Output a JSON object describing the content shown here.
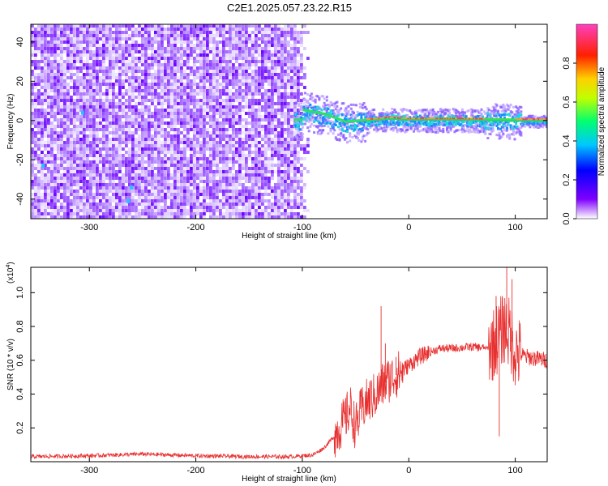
{
  "title": "C2E1.2025.057.23.22.R15",
  "chart_data": [
    {
      "type": "heatmap",
      "xlabel": "Height of straight line (km)",
      "ylabel": "Frequency (Hz)",
      "xlim": [
        -355,
        130
      ],
      "ylim": [
        -50,
        49
      ],
      "xticks": [
        -300,
        -200,
        -100,
        0,
        100
      ],
      "yticks": [
        -40,
        -20,
        0,
        20,
        40
      ],
      "colorbar": {
        "label": "Normalized spectral amplitude",
        "range": [
          0,
          1
        ],
        "ticks": [
          0.0,
          0.2,
          0.4,
          0.6,
          0.8
        ]
      },
      "features": {
        "noise_region_x": [
          -355,
          -100
        ],
        "signal_line_center_hz": [
          [
            -100,
            5
          ],
          [
            -80,
            3
          ],
          [
            -60,
            -1
          ],
          [
            -40,
            0
          ],
          [
            -20,
            1
          ],
          [
            0,
            0.5
          ],
          [
            50,
            0.5
          ],
          [
            100,
            0
          ],
          [
            130,
            0
          ]
        ]
      }
    },
    {
      "type": "line",
      "xlabel": "Height of straight line (km)",
      "ylabel": "SNR (10 * v/v)",
      "ylabel_multiplier": "(x10",
      "ylabel_multiplier_exp": "4",
      "ylabel_multiplier_close": ")",
      "xlim": [
        -355,
        130
      ],
      "ylim": [
        0,
        1.15
      ],
      "xticks": [
        -300,
        -200,
        -100,
        0,
        100
      ],
      "yticks": [
        0.2,
        0.4,
        0.6,
        0.8,
        1.0
      ],
      "series": [
        {
          "color": "#e83030",
          "x": [
            -355,
            -300,
            -250,
            -200,
            -150,
            -110,
            -90,
            -80,
            -70,
            -60,
            -55,
            -50,
            -45,
            -40,
            -30,
            -25,
            -20,
            -15,
            -10,
            0,
            10,
            20,
            30,
            40,
            60,
            75,
            80,
            85,
            90,
            95,
            100,
            110,
            120,
            130
          ],
          "y": [
            0.03,
            0.035,
            0.045,
            0.035,
            0.03,
            0.03,
            0.04,
            0.08,
            0.15,
            0.25,
            0.32,
            0.2,
            0.3,
            0.35,
            0.4,
            0.45,
            0.48,
            0.5,
            0.52,
            0.57,
            0.62,
            0.65,
            0.67,
            0.67,
            0.68,
            0.67,
            0.7,
            0.75,
            0.8,
            0.75,
            0.65,
            0.62,
            0.61,
            0.6
          ]
        }
      ]
    }
  ]
}
